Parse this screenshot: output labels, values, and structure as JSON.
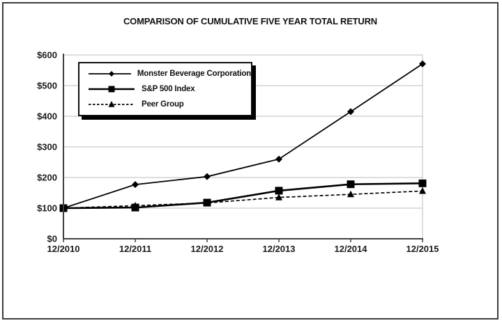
{
  "chart_data": {
    "type": "line",
    "title": "COMPARISON OF CUMULATIVE FIVE YEAR TOTAL RETURN",
    "categories": [
      "12/2010",
      "12/2011",
      "12/2012",
      "12/2013",
      "12/2014",
      "12/2015"
    ],
    "series": [
      {
        "name": "Monster Beverage Corporation",
        "marker": "diamond",
        "line": "solid",
        "values": [
          100,
          177,
          203,
          260,
          415,
          571
        ]
      },
      {
        "name": "S&P 500 Index",
        "marker": "square",
        "line": "solid",
        "values": [
          100,
          102,
          118,
          157,
          178,
          181
        ]
      },
      {
        "name": "Peer Group",
        "marker": "triangle",
        "line": "dashed",
        "values": [
          100,
          108,
          117,
          135,
          145,
          156
        ]
      }
    ],
    "ylim": [
      0,
      600
    ],
    "y_tick_labels": [
      "$0",
      "$100",
      "$200",
      "$300",
      "$400",
      "$500",
      "$600"
    ],
    "grid": "horizontal-only",
    "legend_position": "top-left-inside"
  },
  "colors": {
    "background": "#ffffff",
    "series_line": "#000000",
    "grid": "#bdbdbd",
    "axis": "#404040",
    "text": "#1a1a1a"
  }
}
